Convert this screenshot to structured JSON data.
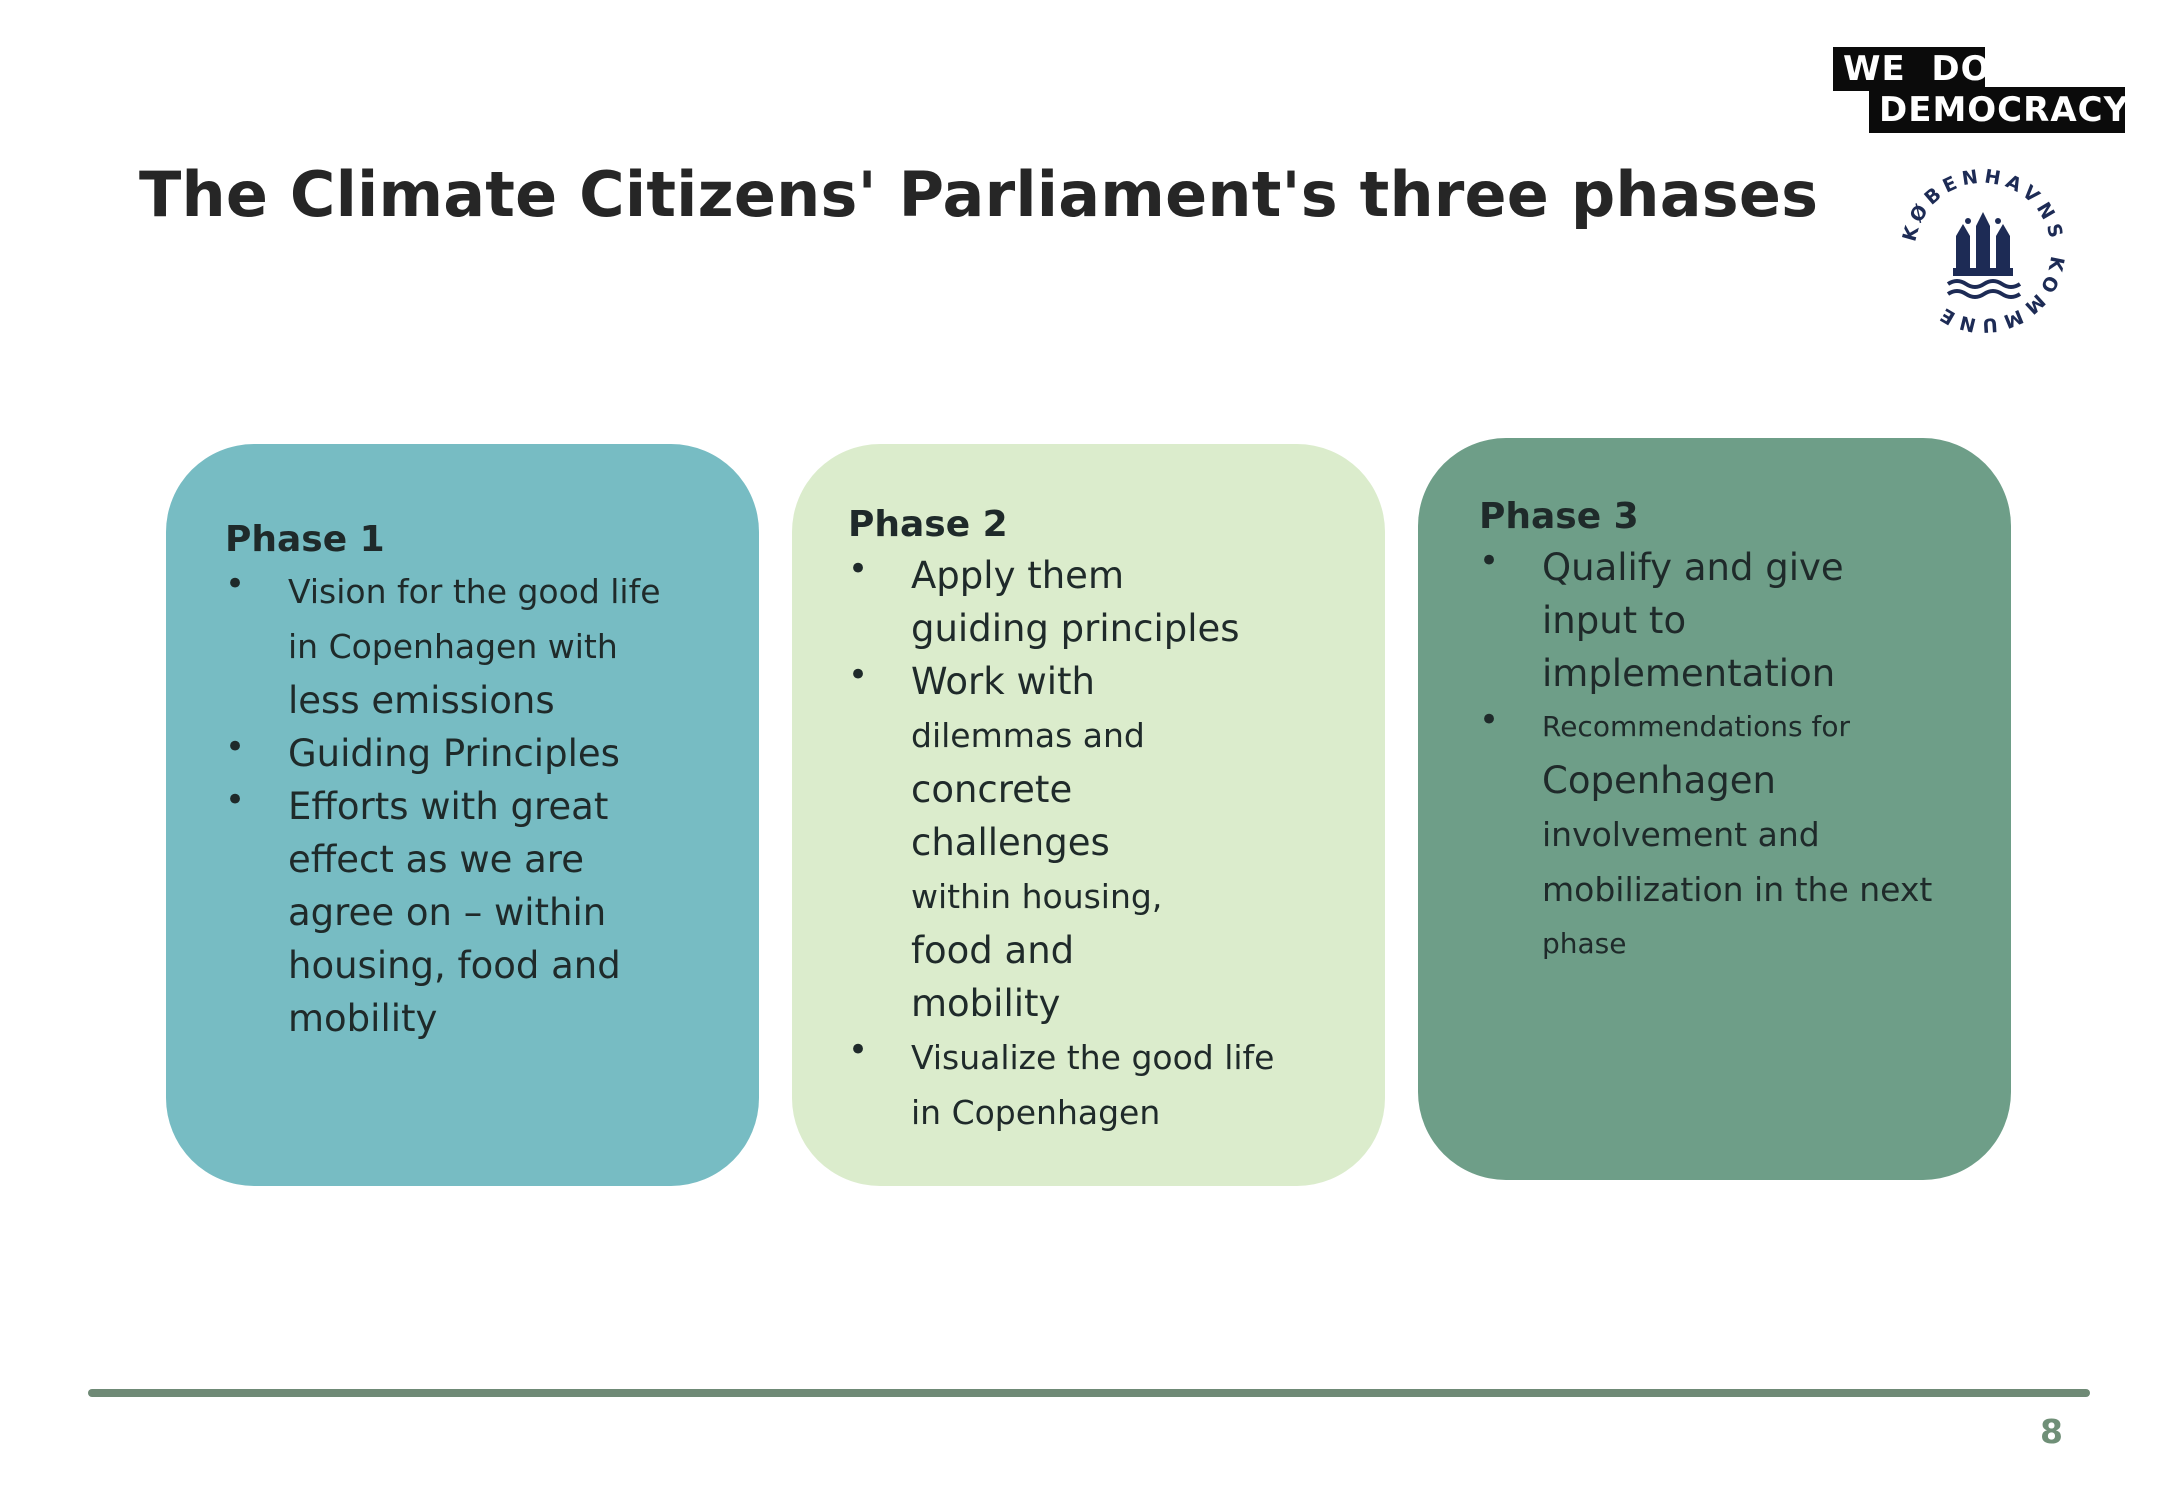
{
  "title": "The Climate Citizens' Parliament's three phases",
  "logo": {
    "line1": "WE  DO",
    "line2": "DEMOCRACY"
  },
  "seal_text": "KØBENHAVNS KOMMUNE",
  "phases": [
    {
      "heading": "Phase 1",
      "bullets": [
        [
          "Vision for the good life",
          "in Copenhagen with",
          "less emissions"
        ],
        [
          "Guiding Principles"
        ],
        [
          "Efforts with great",
          "effect as we are",
          "agree on – within",
          "housing, food and",
          "mobility"
        ]
      ]
    },
    {
      "heading": "Phase 2",
      "bullets": [
        [
          "Apply them",
          "guiding principles"
        ],
        [
          "Work with",
          "dilemmas and",
          "concrete",
          "challenges",
          "within housing,",
          "food and",
          "mobility"
        ],
        [
          "Visualize the good life",
          "in Copenhagen"
        ]
      ]
    },
    {
      "heading": "Phase 3",
      "bullets": [
        [
          "Qualify and give",
          "input to",
          "implementation"
        ],
        [
          "Recommendations for",
          "Copenhagen",
          "involvement and",
          "mobilization in the next",
          "phase"
        ]
      ]
    }
  ],
  "page_number": "8",
  "colors": {
    "phase1": "#77bcc3",
    "phase2": "#dbeccc",
    "phase3": "#6e9e88",
    "rule": "#6f8a76"
  }
}
